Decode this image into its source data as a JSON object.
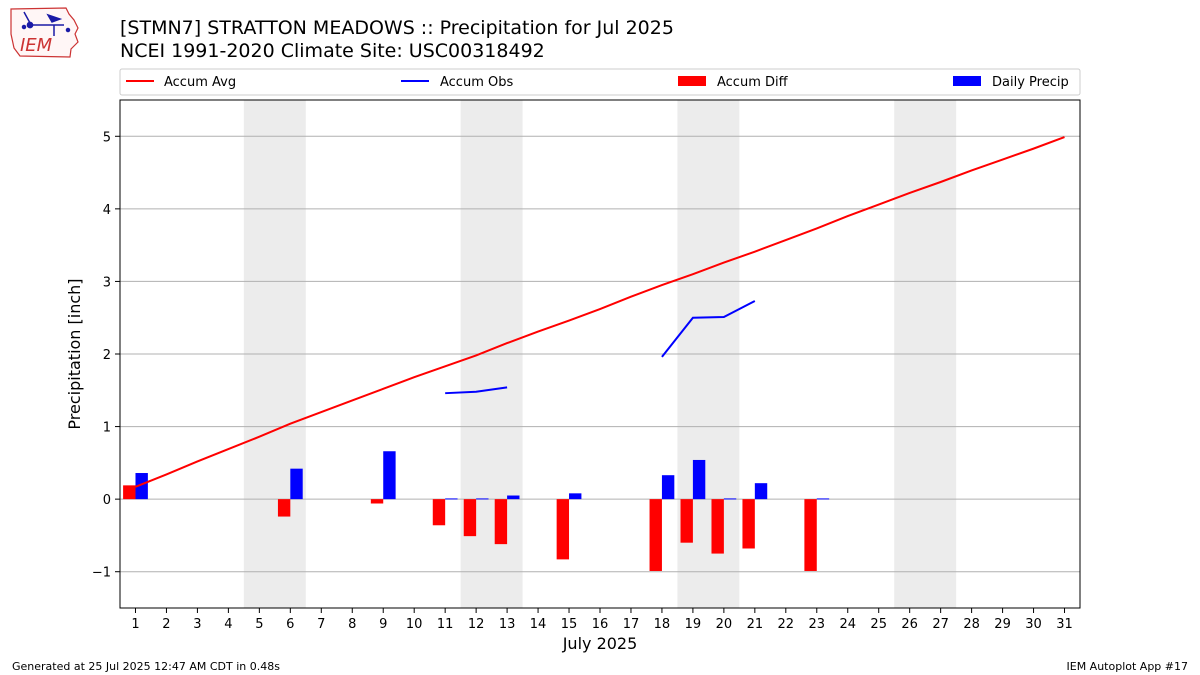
{
  "logo": {
    "text": "IEM",
    "colors": {
      "outline": "#cc3333",
      "station": "#1a1aa6"
    }
  },
  "header": {
    "title_line1": "[STMN7] STRATTON MEADOWS :: Precipitation for Jul 2025",
    "title_line2": "NCEI 1991-2020 Climate Site: USC00318492"
  },
  "footer": {
    "left": "Generated at 25 Jul 2025 12:47 AM CDT in 0.48s",
    "right": "IEM Autoplot App #17"
  },
  "chart_data": {
    "type": "bar",
    "title": "[STMN7] STRATTON MEADOWS :: Precipitation for Jul 2025",
    "subtitle": "NCEI 1991-2020 Climate Site: USC00318492",
    "xlabel": "July 2025",
    "ylabel": "Precipitation [inch]",
    "categories": [
      1,
      2,
      3,
      4,
      5,
      6,
      7,
      8,
      9,
      10,
      11,
      12,
      13,
      14,
      15,
      16,
      17,
      18,
      19,
      20,
      21,
      22,
      23,
      24,
      25,
      26,
      27,
      28,
      29,
      30,
      31
    ],
    "xlim": [
      0.5,
      31.5
    ],
    "ylim": [
      -1.5,
      5.5
    ],
    "yticks": [
      -1,
      0,
      1,
      2,
      3,
      4,
      5
    ],
    "ytick_labels": [
      "−1",
      "0",
      "1",
      "2",
      "3",
      "4",
      "5"
    ],
    "grid": "horizontal",
    "legend_position": "top",
    "weekend_shading": [
      [
        4.5,
        6.5
      ],
      [
        11.5,
        13.5
      ],
      [
        18.5,
        20.5
      ],
      [
        25.5,
        27.5
      ]
    ],
    "colors": {
      "accum_avg": "#ff0000",
      "accum_obs": "#0000ff",
      "accum_diff": "#ff0000",
      "daily_precip": "#0000ff",
      "shade": "#ececec",
      "grid": "#b0b0b0"
    },
    "legend": [
      "Accum Avg",
      "Accum Obs",
      "Accum Diff",
      "Daily Precip"
    ],
    "series": [
      {
        "name": "Accum Avg",
        "type": "line",
        "x": [
          1,
          2,
          3,
          4,
          5,
          6,
          7,
          8,
          9,
          10,
          11,
          12,
          13,
          14,
          15,
          16,
          17,
          18,
          19,
          20,
          21,
          22,
          23,
          24,
          25,
          26,
          27,
          28,
          29,
          30,
          31
        ],
        "values": [
          0.17,
          0.34,
          0.52,
          0.69,
          0.86,
          1.04,
          1.2,
          1.36,
          1.52,
          1.68,
          1.83,
          1.98,
          2.15,
          2.31,
          2.46,
          2.62,
          2.79,
          2.95,
          3.1,
          3.26,
          3.41,
          3.57,
          3.73,
          3.9,
          4.06,
          4.22,
          4.37,
          4.53,
          4.68,
          4.83,
          4.99
        ]
      },
      {
        "name": "Accum Obs",
        "type": "line",
        "segments": [
          {
            "x": [
              11,
              12,
              13
            ],
            "values": [
              1.46,
              1.48,
              1.54
            ]
          },
          {
            "x": [
              18,
              19,
              20,
              21
            ],
            "values": [
              1.96,
              2.5,
              2.51,
              2.73
            ]
          }
        ]
      },
      {
        "name": "Accum Diff",
        "type": "bar",
        "x": [
          1,
          6,
          9,
          11,
          12,
          13,
          15,
          18,
          19,
          20,
          21,
          23
        ],
        "values": [
          0.19,
          -0.24,
          -0.06,
          -0.36,
          -0.51,
          -0.62,
          -0.83,
          -0.99,
          -0.6,
          -0.75,
          -0.68,
          -0.99
        ]
      },
      {
        "name": "Daily Precip",
        "type": "bar",
        "x": [
          1,
          6,
          9,
          11,
          12,
          13,
          15,
          18,
          19,
          20,
          21,
          23
        ],
        "values": [
          0.36,
          0.42,
          0.66,
          0.01,
          0.01,
          0.05,
          0.08,
          0.33,
          0.54,
          0.01,
          0.22,
          0.01
        ]
      }
    ]
  }
}
